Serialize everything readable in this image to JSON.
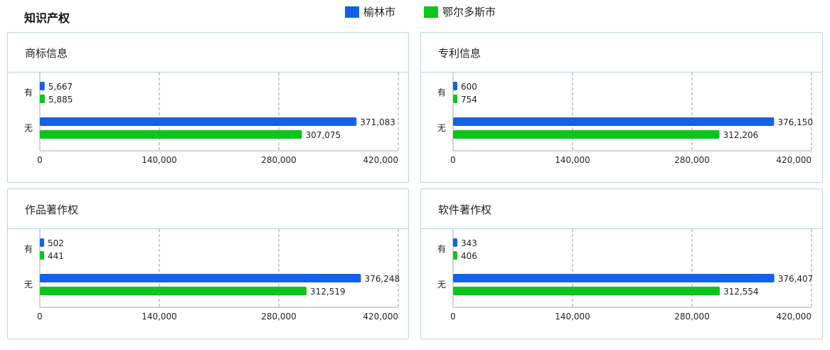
{
  "page": {
    "title": "知识产权"
  },
  "legend": [
    {
      "name": "榆林市",
      "color": "#1461e8"
    },
    {
      "name": "鄂尔多斯市",
      "color": "#0dc41d"
    }
  ],
  "chart_data": [
    {
      "type": "bar",
      "orientation": "horizontal",
      "title": "商标信息",
      "categories": [
        "有",
        "无"
      ],
      "series": [
        {
          "name": "榆林市",
          "values": [
            5667,
            371083
          ]
        },
        {
          "name": "鄂尔多斯市",
          "values": [
            5885,
            307075
          ]
        }
      ],
      "xlim": [
        0,
        420000
      ],
      "xticks": [
        "0",
        "140,000",
        "280,000",
        "420,000"
      ],
      "data_labels": [
        [
          "5,667",
          "371,083"
        ],
        [
          "5,885",
          "307,075"
        ]
      ],
      "grid": "vertical-dashed"
    },
    {
      "type": "bar",
      "orientation": "horizontal",
      "title": "专利信息",
      "categories": [
        "有",
        "无"
      ],
      "series": [
        {
          "name": "榆林市",
          "values": [
            600,
            376150
          ]
        },
        {
          "name": "鄂尔多斯市",
          "values": [
            754,
            312206
          ]
        }
      ],
      "xlim": [
        0,
        420000
      ],
      "xticks": [
        "0",
        "140,000",
        "280,000",
        "420,000"
      ],
      "data_labels": [
        [
          "600",
          "376,150"
        ],
        [
          "754",
          "312,206"
        ]
      ],
      "grid": "vertical-dashed"
    },
    {
      "type": "bar",
      "orientation": "horizontal",
      "title": "作品著作权",
      "categories": [
        "有",
        "无"
      ],
      "series": [
        {
          "name": "榆林市",
          "values": [
            502,
            376248
          ]
        },
        {
          "name": "鄂尔多斯市",
          "values": [
            441,
            312519
          ]
        }
      ],
      "xlim": [
        0,
        420000
      ],
      "xticks": [
        "0",
        "140,000",
        "280,000",
        "420,000"
      ],
      "data_labels": [
        [
          "502",
          "376,248"
        ],
        [
          "441",
          "312,519"
        ]
      ],
      "grid": "vertical-dashed"
    },
    {
      "type": "bar",
      "orientation": "horizontal",
      "title": "软件著作权",
      "categories": [
        "有",
        "无"
      ],
      "series": [
        {
          "name": "榆林市",
          "values": [
            343,
            376407
          ]
        },
        {
          "name": "鄂尔多斯市",
          "values": [
            406,
            312554
          ]
        }
      ],
      "xlim": [
        0,
        420000
      ],
      "xticks": [
        "0",
        "140,000",
        "280,000",
        "420,000"
      ],
      "data_labels": [
        [
          "343",
          "376,407"
        ],
        [
          "406",
          "312,554"
        ]
      ],
      "grid": "vertical-dashed"
    }
  ]
}
